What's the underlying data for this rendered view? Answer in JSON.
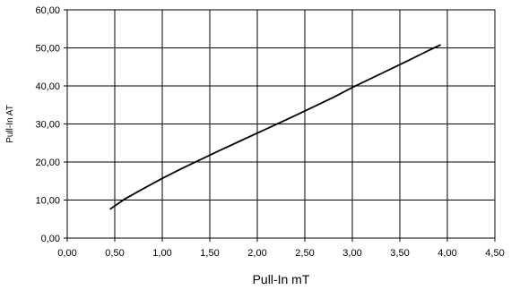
{
  "chart_data": {
    "type": "line",
    "xlabel": "Pull-In mT",
    "ylabel": "Pull-In AT",
    "xlim": [
      0,
      4.5
    ],
    "ylim": [
      0,
      60
    ],
    "grid": true,
    "x_ticks": [
      "0,00",
      "0,50",
      "1,00",
      "1,50",
      "2,00",
      "2,50",
      "3,00",
      "3,50",
      "4,00",
      "4,50"
    ],
    "y_ticks": [
      "0,00",
      "10,00",
      "20,00",
      "30,00",
      "40,00",
      "50,00",
      "60,00"
    ],
    "series": [
      {
        "x": [
          0.45,
          0.6,
          0.8,
          1.0,
          1.2,
          1.4,
          1.6,
          1.8,
          2.0,
          2.2,
          2.4,
          2.6,
          2.8,
          3.0,
          3.2,
          3.4,
          3.6,
          3.8,
          3.93
        ],
        "y": [
          7.6,
          10.2,
          13.0,
          15.7,
          18.2,
          20.6,
          23.0,
          25.3,
          27.6,
          29.9,
          32.2,
          34.6,
          37.0,
          39.6,
          42.0,
          44.4,
          46.8,
          49.3,
          50.8
        ],
        "color": "#000000"
      }
    ]
  }
}
